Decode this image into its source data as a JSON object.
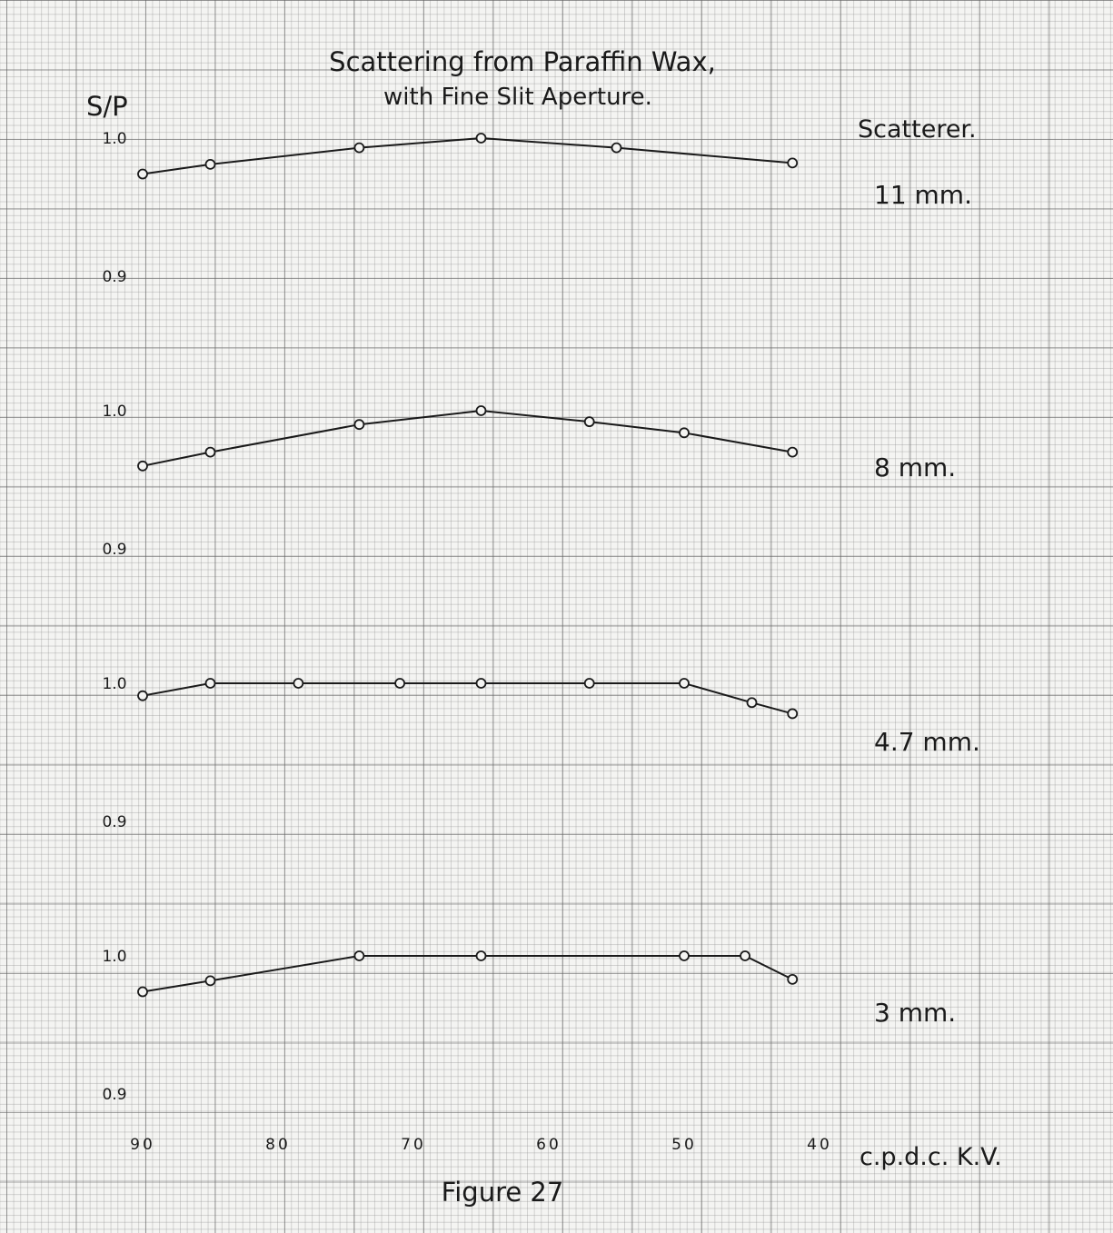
{
  "chart_data": {
    "type": "line",
    "title": "Scattering from Paraffin Wax,",
    "subtitle": "with Fine Slit Aperture.",
    "ylabel": "S/P",
    "xlabel": "c.p.d.c. K.V.",
    "legend_title": "Scatterer.",
    "x_ticks": [
      "90",
      "80",
      "70",
      "60",
      "50",
      "40"
    ],
    "x_tick_values": [
      90,
      80,
      70,
      60,
      50,
      40
    ],
    "xlim": [
      90,
      40
    ],
    "caption": "Figure 27",
    "panels": [
      {
        "name": "11 mm.",
        "ylim": [
          0.9,
          1.0
        ],
        "y_ticks": [
          "1.0",
          "0.9"
        ],
        "x": [
          90,
          85,
          74,
          65,
          55,
          42
        ],
        "y": [
          0.974,
          0.981,
          0.993,
          1.0,
          0.993,
          0.982
        ]
      },
      {
        "name": "8 mm.",
        "ylim": [
          0.9,
          1.0
        ],
        "y_ticks": [
          "1.0",
          "0.9"
        ],
        "x": [
          90,
          85,
          74,
          65,
          57,
          50,
          42
        ],
        "y": [
          0.96,
          0.97,
          0.99,
          1.0,
          0.992,
          0.984,
          0.97
        ]
      },
      {
        "name": "4.7 mm.",
        "ylim": [
          0.9,
          1.0
        ],
        "y_ticks": [
          "1.0",
          "0.9"
        ],
        "x": [
          90,
          85,
          78.5,
          71,
          65,
          57,
          50,
          45,
          42
        ],
        "y": [
          0.991,
          1.0,
          1.0,
          1.0,
          1.0,
          1.0,
          1.0,
          0.986,
          0.978
        ]
      },
      {
        "name": "3 mm.",
        "ylim": [
          0.9,
          1.0
        ],
        "y_ticks": [
          "1.0",
          "0.9"
        ],
        "x": [
          90,
          85,
          74,
          65,
          50,
          45.5,
          42
        ],
        "y": [
          0.974,
          0.982,
          1.0,
          1.0,
          1.0,
          1.0,
          0.983
        ]
      }
    ]
  }
}
